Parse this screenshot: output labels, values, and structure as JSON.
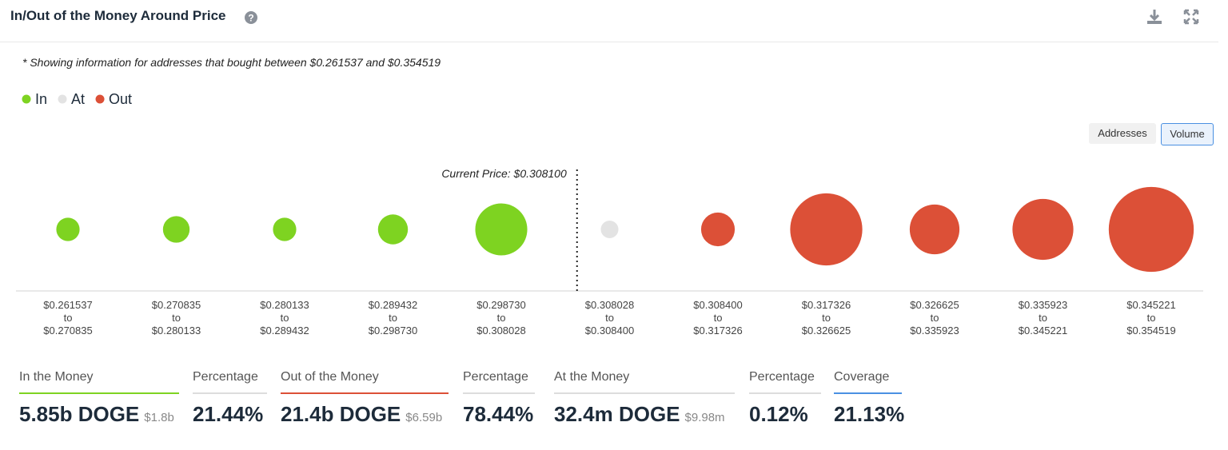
{
  "header": {
    "title": "In/Out of the Money Around Price"
  },
  "chart_data": {
    "type": "bubble",
    "note": "* Showing information for addresses that bought between $0.261537 and $0.354519",
    "annotation": "Current Price: $0.308100",
    "toggle": [
      "Addresses",
      "Volume"
    ],
    "range_word": "to",
    "categories": [
      [
        "$0.261537",
        "$0.270835"
      ],
      [
        "$0.270835",
        "$0.280133"
      ],
      [
        "$0.280133",
        "$0.289432"
      ],
      [
        "$0.289432",
        "$0.298730"
      ],
      [
        "$0.298730",
        "$0.308028"
      ],
      [
        "$0.308028",
        "$0.308400"
      ],
      [
        "$0.308400",
        "$0.317326"
      ],
      [
        "$0.317326",
        "$0.326625"
      ],
      [
        "$0.326625",
        "$0.335923"
      ],
      [
        "$0.335923",
        "$0.345221"
      ],
      [
        "$0.345221",
        "$0.354519"
      ]
    ],
    "series": [
      {
        "name": "In",
        "color": "#7ed321",
        "values": [
          0.59,
          0.77,
          0.59,
          0.97,
          2.93,
          null,
          null,
          null,
          null,
          null,
          null
        ]
      },
      {
        "name": "At",
        "color": "#e3e3e3",
        "values": [
          null,
          null,
          null,
          null,
          null,
          0.0324,
          null,
          null,
          null,
          null,
          null
        ]
      },
      {
        "name": "Out",
        "color": "#dc5037",
        "values": [
          null,
          null,
          null,
          null,
          null,
          null,
          1.23,
          5.64,
          2.68,
          4.02,
          7.83
        ]
      }
    ]
  },
  "stats": [
    {
      "label": "In the Money",
      "value": "5.85b DOGE",
      "sub": "$1.8b"
    },
    {
      "label": "Percentage",
      "value": "21.44%"
    },
    {
      "label": "Out of the Money",
      "value": "21.4b DOGE",
      "sub": "$6.59b"
    },
    {
      "label": "Percentage",
      "value": "78.44%"
    },
    {
      "label": "At the Money",
      "value": "32.4m DOGE",
      "sub": "$9.98m"
    },
    {
      "label": "Percentage",
      "value": "0.12%"
    },
    {
      "label": "Coverage",
      "value": "21.13%"
    }
  ]
}
